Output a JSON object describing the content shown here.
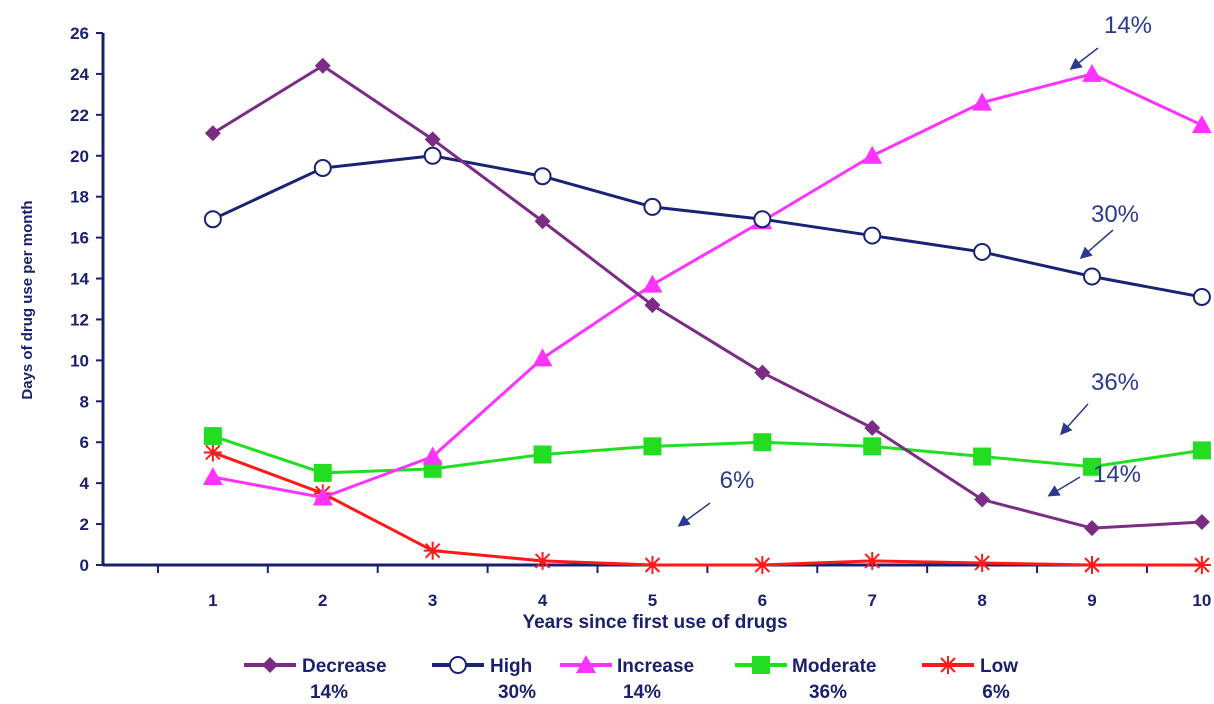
{
  "chart_data": {
    "type": "line",
    "xlabel": "Years since first use of drugs",
    "ylabel": "Days of drug use per month",
    "x": [
      1,
      2,
      3,
      4,
      5,
      6,
      7,
      8,
      9,
      10
    ],
    "xlim": [
      0,
      10.5
    ],
    "ylim": [
      0,
      26
    ],
    "yticks": [
      0,
      2,
      4,
      6,
      8,
      10,
      12,
      14,
      16,
      18,
      20,
      22,
      24,
      26
    ],
    "grid": false,
    "legend_position": "bottom",
    "series": [
      {
        "name": "Decrease",
        "pct": "14%",
        "color": "#7b2d83",
        "marker": "diamond",
        "values": [
          21.1,
          24.4,
          20.8,
          16.8,
          12.7,
          9.4,
          6.7,
          3.2,
          1.8,
          2.1
        ]
      },
      {
        "name": "High",
        "pct": "30%",
        "color": "#1a2275",
        "marker": "circle",
        "values": [
          16.9,
          19.4,
          20.0,
          19.0,
          17.5,
          16.9,
          16.1,
          15.3,
          14.1,
          13.1
        ]
      },
      {
        "name": "Increase",
        "pct": "14%",
        "color": "#ff33ff",
        "marker": "triangle",
        "values": [
          4.3,
          3.3,
          5.3,
          10.1,
          13.7,
          16.8,
          20.0,
          22.6,
          24.0,
          21.5
        ]
      },
      {
        "name": "Moderate",
        "pct": "36%",
        "color": "#22dd22",
        "marker": "square",
        "values": [
          6.3,
          4.5,
          4.7,
          5.4,
          5.8,
          6.0,
          5.8,
          5.3,
          4.8,
          5.6
        ]
      },
      {
        "name": "Low",
        "pct": "6%",
        "color": "#ff1a1a",
        "marker": "star",
        "values": [
          5.5,
          3.5,
          0.7,
          0.2,
          0.0,
          0.0,
          0.2,
          0.1,
          0.0,
          0.0
        ]
      }
    ],
    "annotations": [
      {
        "text": "14%",
        "series": "Increase"
      },
      {
        "text": "30%",
        "series": "High"
      },
      {
        "text": "36%",
        "series": "Moderate"
      },
      {
        "text": "14%",
        "series": "Decrease"
      },
      {
        "text": "6%",
        "series": "Low"
      }
    ]
  }
}
